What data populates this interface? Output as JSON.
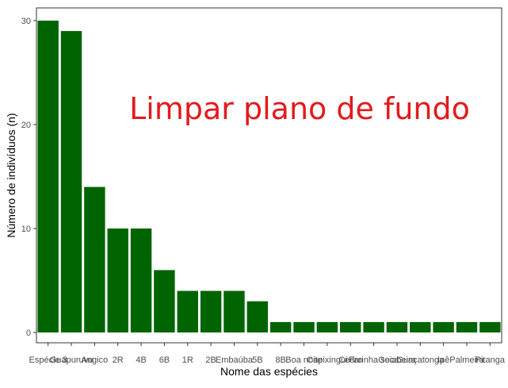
{
  "chart_data": {
    "type": "bar",
    "categories": [
      "Espécie 3",
      "Guapuruvu",
      "Angico",
      "2R",
      "4B",
      "6B",
      "1R",
      "2B",
      "Embaúba",
      "5B",
      "8B",
      "Boa noite",
      "Capixingui",
      "Cedro",
      "Farinha seca",
      "Goiabeira",
      "Guaçatonga",
      "Ipê",
      "Palmeira",
      "Pitanga"
    ],
    "values": [
      30,
      29,
      14,
      10,
      10,
      6,
      4,
      4,
      4,
      3,
      1,
      1,
      1,
      1,
      1,
      1,
      1,
      1,
      1,
      1
    ],
    "xlabel": "Nome das espécies",
    "ylabel": "Número de indivíduos (n)",
    "ylim": [
      0,
      31.5
    ],
    "yticks": [
      0,
      10,
      20,
      30
    ],
    "bar_color": "#006400",
    "grid": false,
    "annotation": {
      "text": "Limpar plano de fundo",
      "color": "#e31a1c"
    }
  }
}
